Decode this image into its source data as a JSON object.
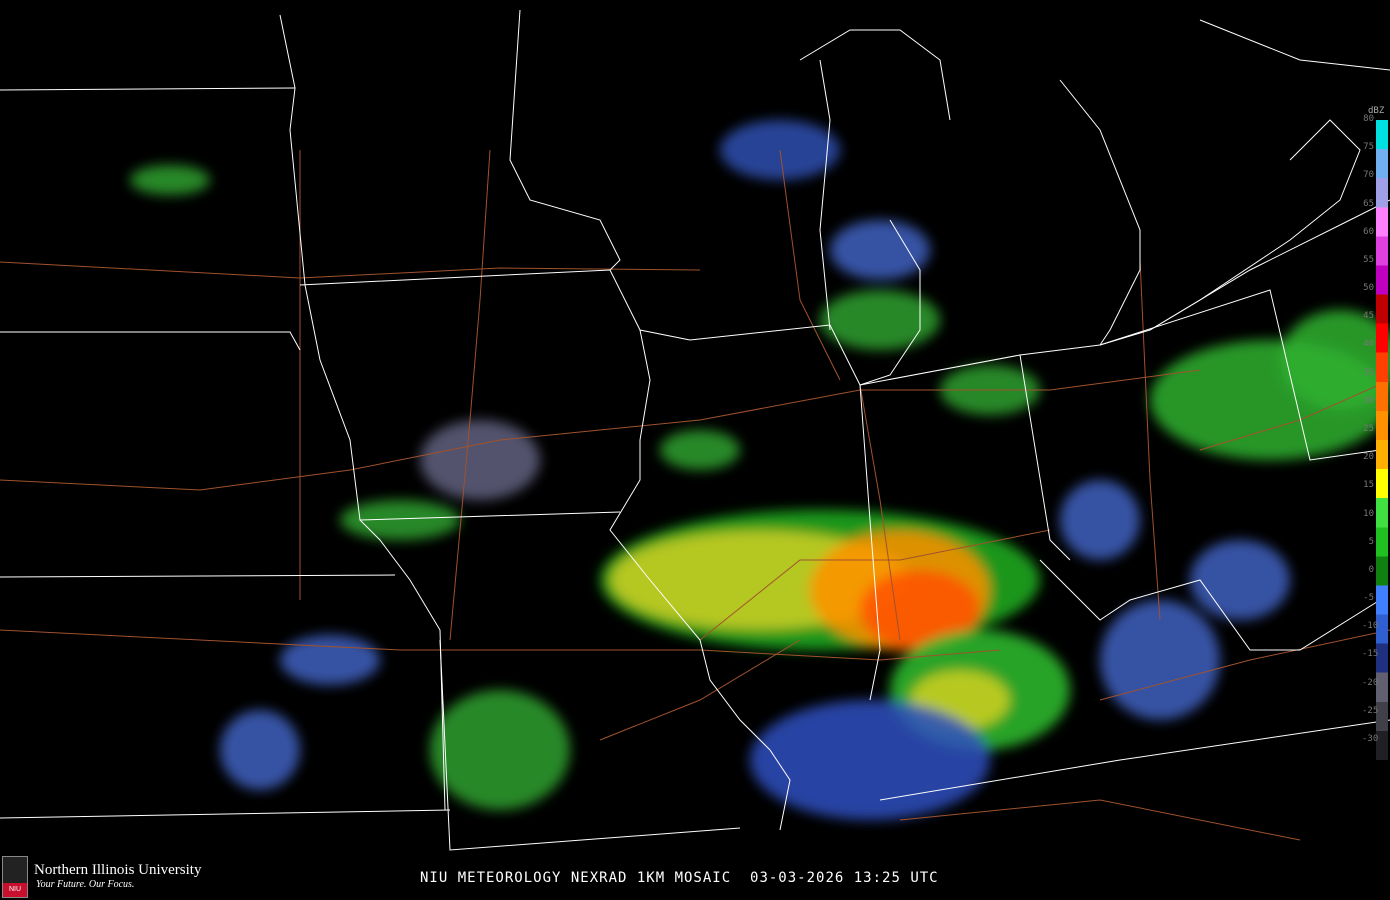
{
  "caption": {
    "product": "NIU METEOROLOGY NEXRAD 1KM MOSAIC",
    "date": "03-03-2026",
    "time": "13:25 UTC"
  },
  "logo": {
    "name": "Northern Illinois University",
    "tagline": "Your Future. Our Focus.",
    "seal_text": "NIU"
  },
  "legend": {
    "unit": "dBZ",
    "labels": [
      "80",
      "75",
      "70",
      "65",
      "60",
      "55",
      "50",
      "45",
      "40",
      "35",
      "30",
      "25",
      "20",
      "15",
      "10",
      "5",
      "0",
      "-5",
      "-10",
      "-15",
      "-20",
      "-25",
      "-30"
    ],
    "colors": [
      "#00e0e0",
      "#70b0f0",
      "#a0a0e8",
      "#ff80ff",
      "#e040e0",
      "#c000c0",
      "#c00000",
      "#ff0000",
      "#ff4000",
      "#ff7000",
      "#ff9000",
      "#ffb000",
      "#ffff00",
      "#40e040",
      "#20c020",
      "#108010",
      "#4080ff",
      "#3060d0",
      "#203080",
      "#606070",
      "#404048",
      "#202024"
    ]
  },
  "colors": {
    "state_lines": "#ffffff",
    "highways": "#a0522d",
    "background": "#000000"
  }
}
